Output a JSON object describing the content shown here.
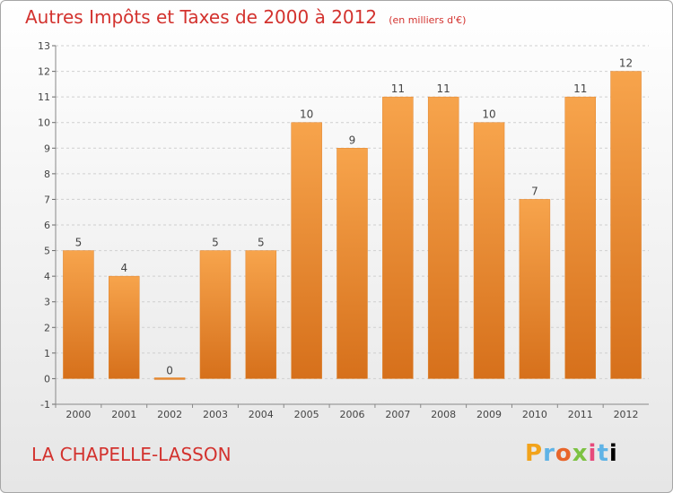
{
  "header": {
    "title": "Autres Impôts et Taxes de 2000 à 2012",
    "unit": "(en milliers d'€)"
  },
  "footer": {
    "place": "LA CHAPELLE-LASSON",
    "logo_letters": [
      "P",
      "r",
      "o",
      "x",
      "i",
      "t",
      "i"
    ]
  },
  "colors": {
    "bar_top": "#f7a44c",
    "bar_bottom": "#d6701b",
    "title": "#d3322e",
    "grid": "#cfcfcf"
  },
  "chart_data": {
    "type": "bar",
    "categories": [
      "2000",
      "2001",
      "2002",
      "2003",
      "2004",
      "2005",
      "2006",
      "2007",
      "2008",
      "2009",
      "2010",
      "2011",
      "2012"
    ],
    "values": [
      5,
      4,
      0,
      5,
      5,
      10,
      9,
      11,
      11,
      10,
      7,
      11,
      12
    ],
    "ylim": [
      -1,
      13
    ],
    "yticks": [
      -1,
      0,
      1,
      2,
      3,
      4,
      5,
      6,
      7,
      8,
      9,
      10,
      11,
      12,
      13
    ],
    "grid": true,
    "grid_style": "dashed horizontal"
  }
}
